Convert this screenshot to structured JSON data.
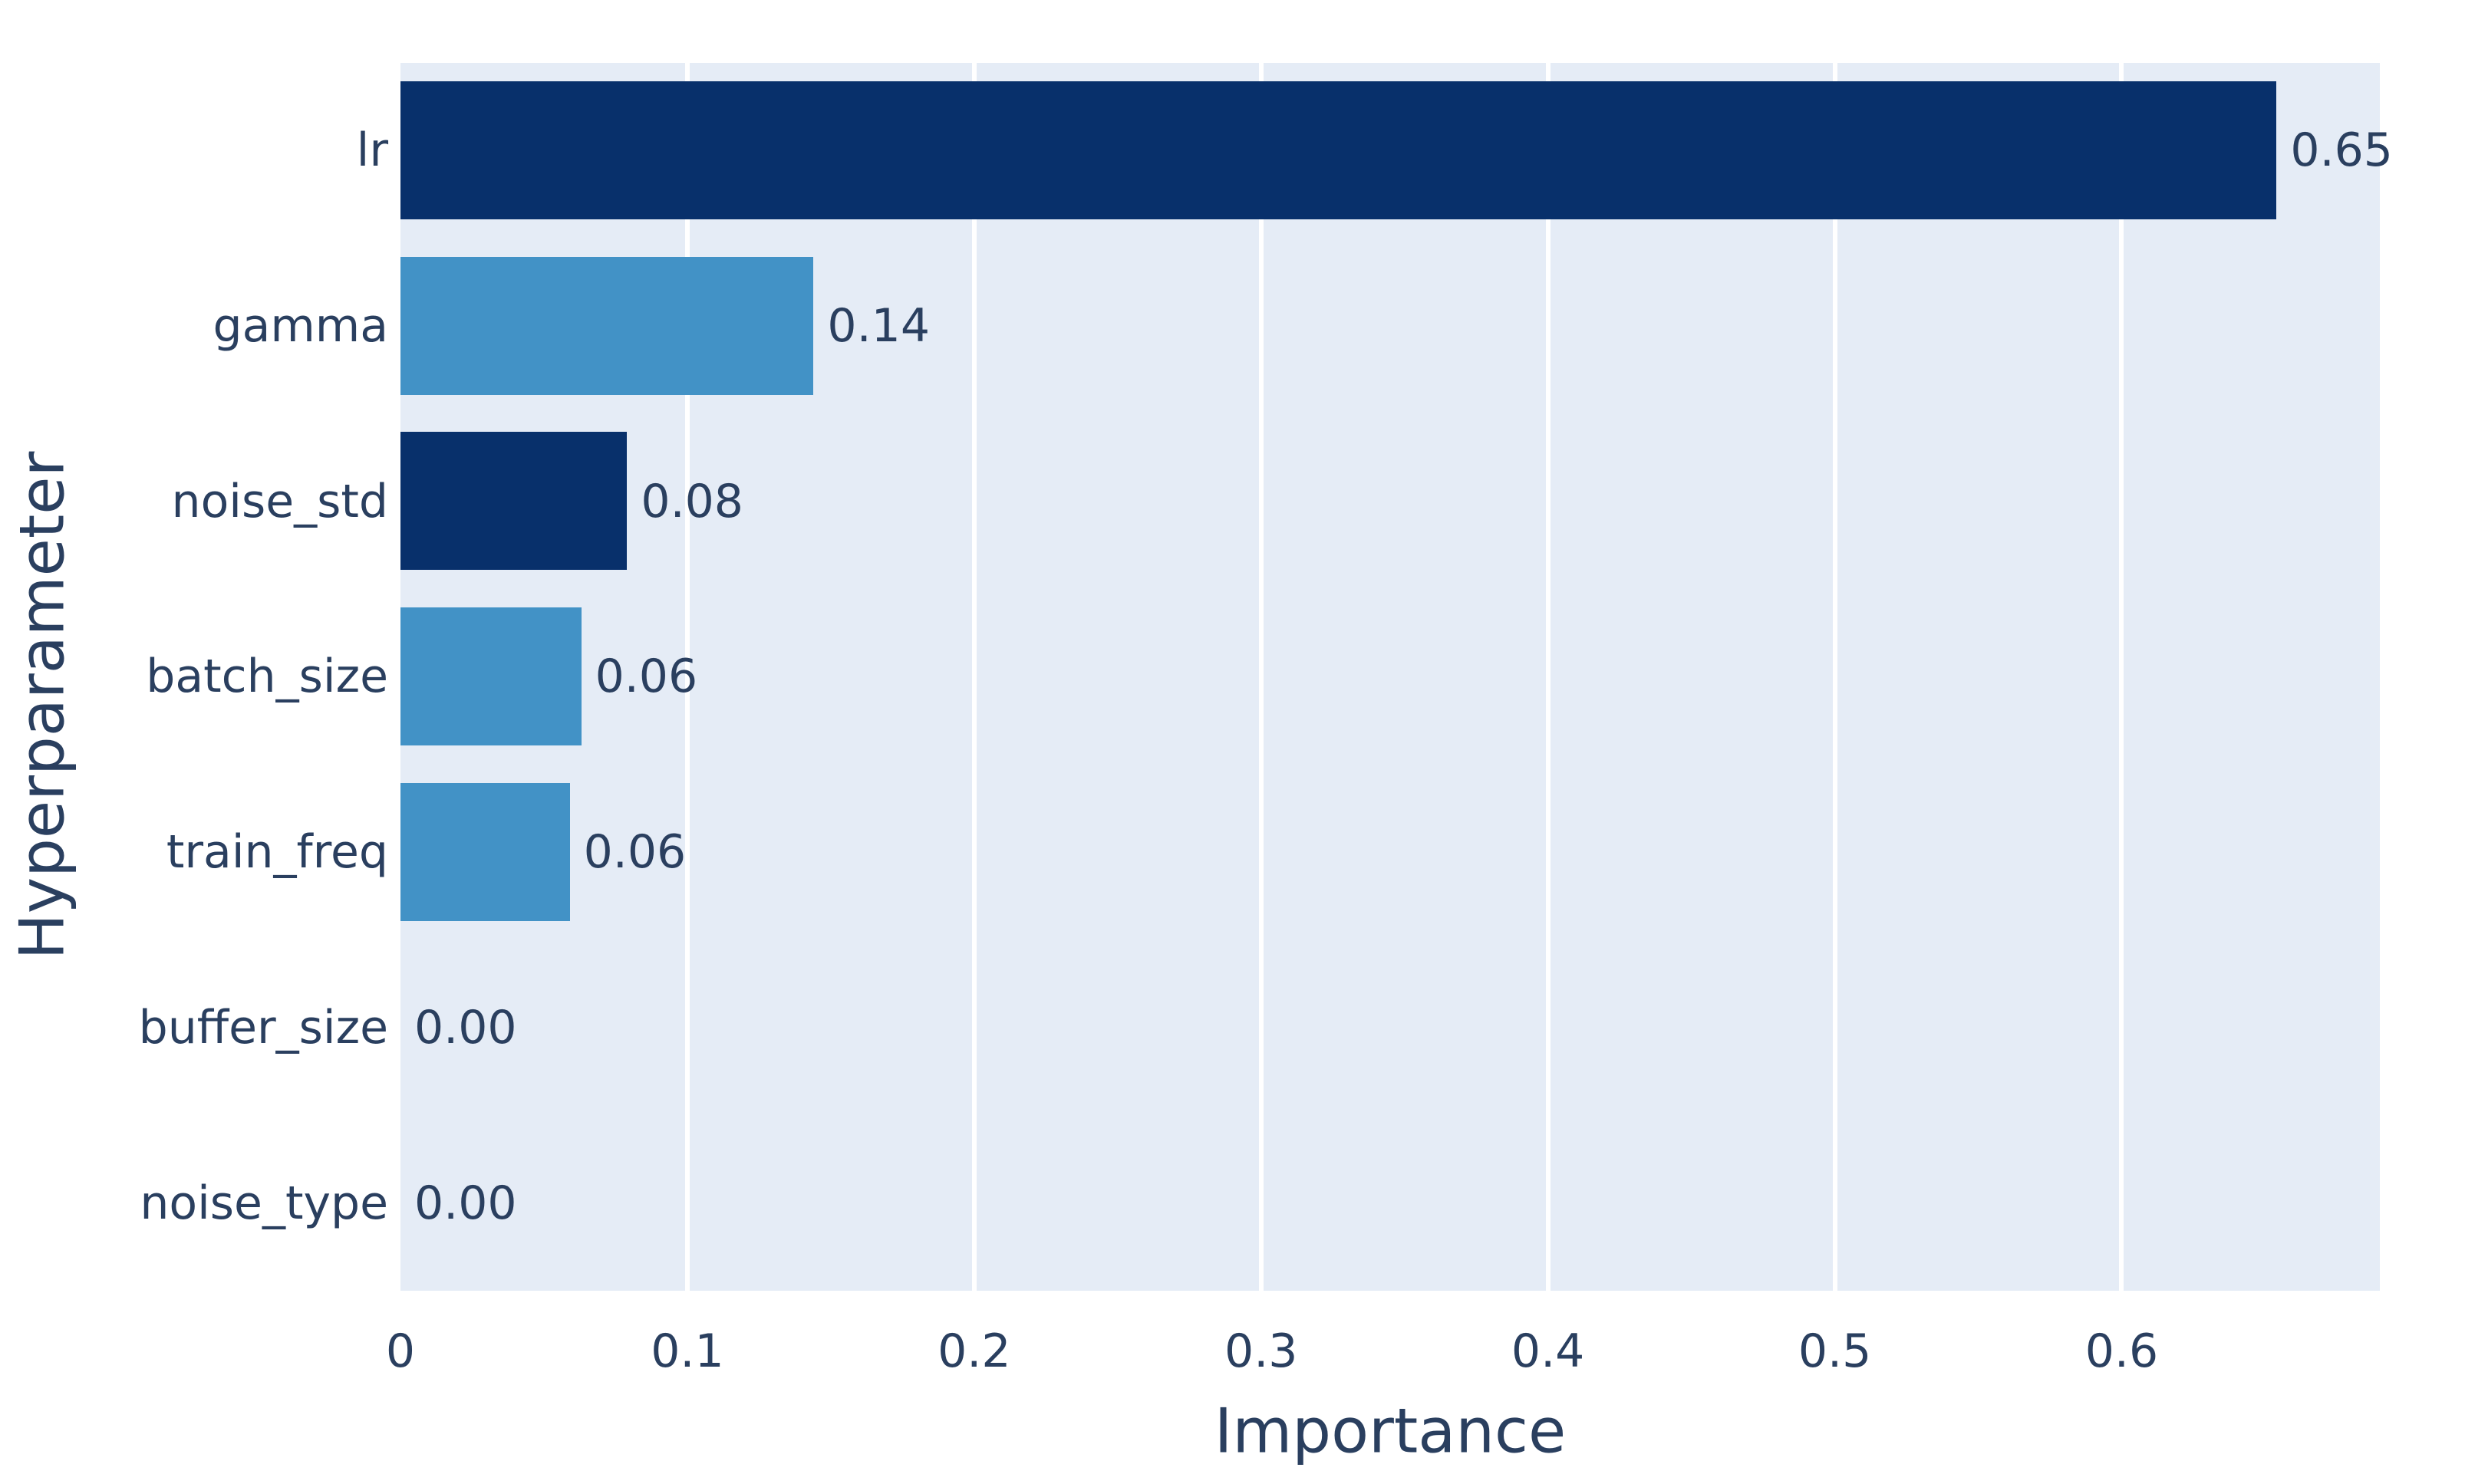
{
  "chart_data": {
    "type": "bar",
    "orientation": "horizontal",
    "title": "",
    "xlabel": "Importance",
    "ylabel": "Hyperparameter",
    "categories": [
      "lr",
      "gamma",
      "noise_std",
      "batch_size",
      "train_freq",
      "buffer_size",
      "noise_type"
    ],
    "values": [
      0.654,
      0.144,
      0.079,
      0.063,
      0.059,
      0.0,
      0.0
    ],
    "value_labels": [
      "0.65",
      "0.14",
      "0.08",
      "0.06",
      "0.06",
      "0.00",
      "0.00"
    ],
    "bar_colors": [
      "#08306b",
      "#4292c6",
      "#08306b",
      "#4292c6",
      "#4292c6",
      "#4292c6",
      "#4292c6"
    ],
    "xlim": [
      0,
      0.69
    ],
    "xticks": [
      0,
      0.1,
      0.2,
      0.3,
      0.4,
      0.5,
      0.6
    ],
    "xtick_labels": [
      "0",
      "0.1",
      "0.2",
      "0.3",
      "0.4",
      "0.5",
      "0.6"
    ],
    "grid": true,
    "legend": "none",
    "colors": {
      "plot_background": "#e5ecf6",
      "page_background": "#ffffff",
      "grid_color": "#ffffff",
      "text_color": "#2a3f5f",
      "bar_dark": "#08306b",
      "bar_light": "#4292c6"
    }
  }
}
